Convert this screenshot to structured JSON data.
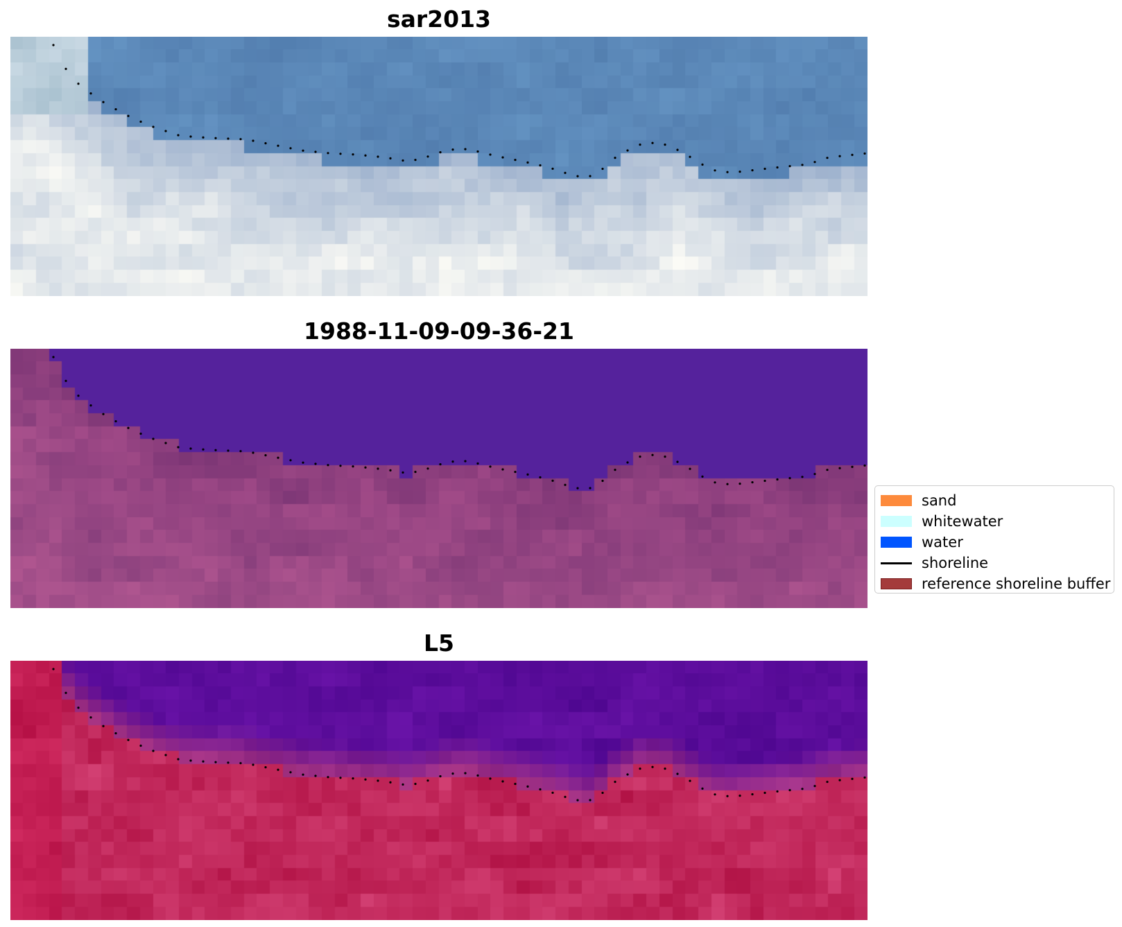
{
  "panels": [
    {
      "title": "sar2013",
      "style": "sar"
    },
    {
      "title": "1988-11-09-09-36-21",
      "style": "classified"
    },
    {
      "title": "L5",
      "style": "falsecolor"
    }
  ],
  "legend": {
    "items": [
      {
        "label": "sand",
        "kind": "patch",
        "color": "#fd8a3c",
        "edge": "#fd8a3c"
      },
      {
        "label": "whitewater",
        "kind": "patch",
        "color": "#ccffff",
        "edge": "#ccffff"
      },
      {
        "label": "water",
        "kind": "patch",
        "color": "#0055ff",
        "edge": "#0055ff"
      },
      {
        "label": "shoreline",
        "kind": "line",
        "color": "#000000"
      },
      {
        "label": "reference shoreline buffer",
        "kind": "patch",
        "color": "#a43b3b",
        "edge": "#7a1f1f"
      }
    ]
  },
  "colors": {
    "water_class": "#55229c",
    "land_class": "#9a4a88",
    "sar_water": "#5b88b8",
    "falsecolor_water": "#5c0d9c",
    "falsecolor_land": "#c21d52"
  }
}
